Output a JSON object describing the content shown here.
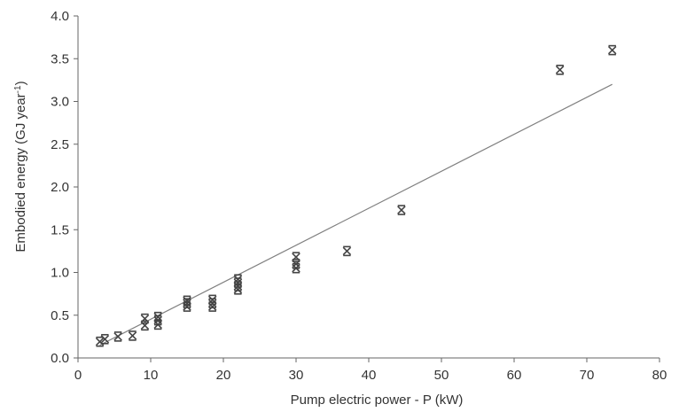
{
  "chart_data": {
    "type": "scatter",
    "title": "",
    "xlabel": "Pump electric power - P (kW)",
    "ylabel_main": "Embodied energy  (GJ year",
    "ylabel_sup": "-1",
    "ylabel_end": ")",
    "xlim": [
      0,
      80
    ],
    "ylim": [
      0,
      4.0
    ],
    "xticks": [
      "0",
      "10",
      "20",
      "30",
      "40",
      "50",
      "60",
      "70",
      "80"
    ],
    "yticks": [
      "0.0",
      "0.5",
      "1.0",
      "1.5",
      "2.0",
      "2.5",
      "3.0",
      "3.5",
      "4.0"
    ],
    "grid": false,
    "legend": "none",
    "series": [
      {
        "marker": "asterisk",
        "color": "#444444",
        "points": [
          [
            3.0,
            0.19
          ],
          [
            3.7,
            0.22
          ],
          [
            5.5,
            0.25
          ],
          [
            7.5,
            0.26
          ],
          [
            9.2,
            0.38
          ],
          [
            9.2,
            0.46
          ],
          [
            11.0,
            0.39
          ],
          [
            11.0,
            0.44
          ],
          [
            11.0,
            0.48
          ],
          [
            15.0,
            0.6
          ],
          [
            15.0,
            0.64
          ],
          [
            15.0,
            0.67
          ],
          [
            18.5,
            0.6
          ],
          [
            18.5,
            0.64
          ],
          [
            18.5,
            0.68
          ],
          [
            22.0,
            0.8
          ],
          [
            22.0,
            0.84
          ],
          [
            22.0,
            0.88
          ],
          [
            22.0,
            0.92
          ],
          [
            30.0,
            1.05
          ],
          [
            30.0,
            1.1
          ],
          [
            30.0,
            1.18
          ],
          [
            37.0,
            1.25
          ],
          [
            44.5,
            1.73
          ],
          [
            66.3,
            3.37
          ],
          [
            73.5,
            3.6
          ]
        ]
      }
    ],
    "fit_line": {
      "color": "#808080",
      "x": [
        3.0,
        73.5
      ],
      "y": [
        0.15,
        3.2
      ]
    }
  }
}
